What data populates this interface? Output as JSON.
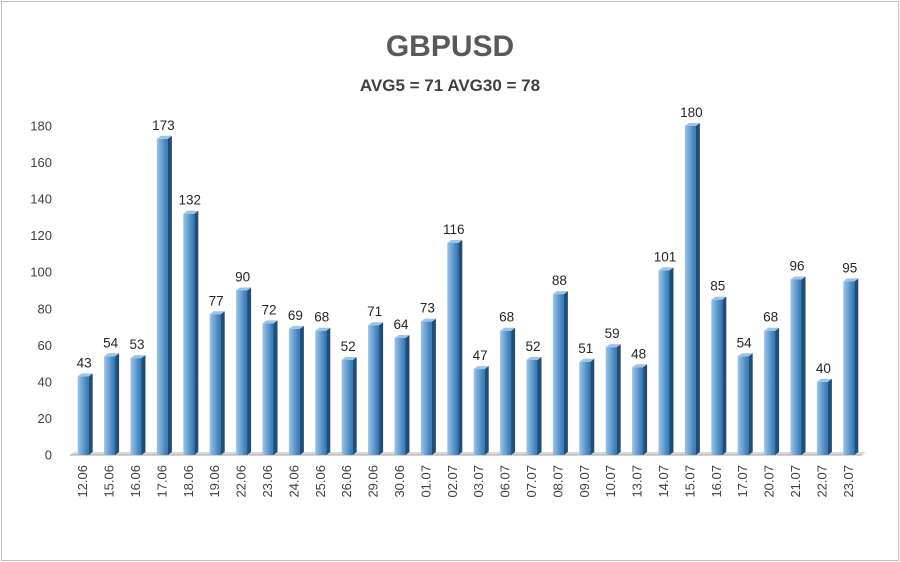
{
  "chart_data": {
    "type": "bar",
    "title": "GBPUSD",
    "subtitle": "AVG5 = 71 AVG30 = 78",
    "categories": [
      "12.06",
      "15.06",
      "16.06",
      "17.06",
      "18.06",
      "19.06",
      "22.06",
      "23.06",
      "24.06",
      "25.06",
      "26.06",
      "29.06",
      "30.06",
      "01.07",
      "02.07",
      "03.07",
      "06.07",
      "07.07",
      "08.07",
      "09.07",
      "10.07",
      "13.07",
      "14.07",
      "15.07",
      "16.07",
      "17.07",
      "20.07",
      "21.07",
      "22.07",
      "23.07"
    ],
    "values": [
      43,
      54,
      53,
      173,
      132,
      77,
      90,
      72,
      69,
      68,
      52,
      71,
      64,
      73,
      116,
      47,
      68,
      52,
      88,
      51,
      59,
      48,
      101,
      180,
      85,
      54,
      68,
      96,
      40,
      95
    ],
    "ylim": [
      0,
      180
    ],
    "yticks": [
      0,
      20,
      40,
      60,
      80,
      100,
      120,
      140,
      160,
      180
    ],
    "grid": false,
    "legend": "none",
    "colors": {
      "bar_light": "#9dc3e6",
      "bar_dark": "#2e75b6",
      "bar_side": "#1f4e79"
    }
  }
}
